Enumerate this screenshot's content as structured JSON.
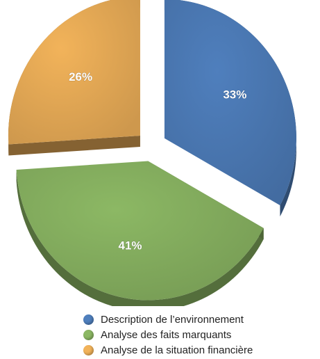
{
  "chart_data": {
    "type": "pie",
    "style": "3d-exploded",
    "series": [
      {
        "name": "Description de l'environnement",
        "value": 33,
        "label": "33%",
        "color": "#4f7fbd"
      },
      {
        "name": "Analyse des faits marquants",
        "value": 41,
        "label": "41%",
        "color": "#8cb864"
      },
      {
        "name": "Analyse de la situation financière",
        "value": 26,
        "label": "26%",
        "color": "#f2b35a"
      }
    ],
    "legend": {
      "position": "bottom-right",
      "items": [
        {
          "label": "Description de l’environnement",
          "color": "#4f7fbd"
        },
        {
          "label": "Analyse des faits marquants",
          "color": "#8cb864"
        },
        {
          "label": "Analyse de la situation financière",
          "color": "#f2b35a"
        }
      ]
    }
  }
}
